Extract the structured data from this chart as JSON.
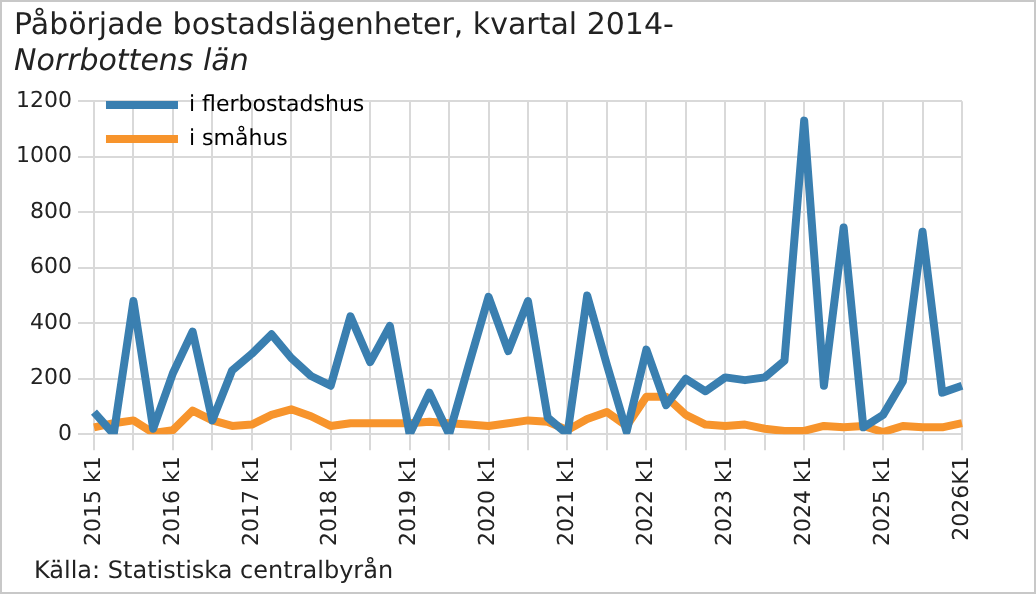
{
  "chart_data": {
    "type": "line",
    "title": "Påbörjade bostadslägenheter, kvartal 2014-",
    "subtitle": "Norrbottens län",
    "categories": [
      "2015 k1",
      null,
      null,
      null,
      "2016 k1",
      null,
      null,
      null,
      "2017 k1",
      null,
      null,
      null,
      "2018 k1",
      null,
      null,
      null,
      "2019 k1",
      null,
      null,
      null,
      "2020 k1",
      null,
      null,
      null,
      "2021 k1",
      null,
      null,
      null,
      "2022 k1",
      null,
      null,
      null,
      "2023 k1",
      null,
      null,
      null,
      "2024 k1",
      null,
      null,
      null,
      "2025 k1",
      null,
      null,
      null,
      "2026K1"
    ],
    "series": [
      {
        "name": "i flerbostadshus",
        "color": "#3a7fb0",
        "values": [
          80,
          0,
          480,
          20,
          220,
          370,
          50,
          230,
          290,
          360,
          275,
          210,
          175,
          425,
          260,
          390,
          0,
          150,
          0,
          250,
          495,
          300,
          480,
          60,
          0,
          500,
          250,
          10,
          305,
          105,
          200,
          155,
          205,
          195,
          205,
          265,
          1130,
          175,
          745,
          25,
          70,
          190,
          730,
          150,
          175
        ]
      },
      {
        "name": "i småhus",
        "color": "#f7942c",
        "values": [
          25,
          40,
          50,
          5,
          15,
          85,
          50,
          30,
          35,
          70,
          90,
          65,
          30,
          40,
          40,
          40,
          40,
          45,
          40,
          35,
          30,
          40,
          50,
          45,
          15,
          55,
          80,
          30,
          135,
          135,
          70,
          35,
          30,
          35,
          20,
          12,
          12,
          30,
          25,
          30,
          8,
          30,
          25,
          25,
          40
        ]
      }
    ],
    "ylim": [
      0,
      1200
    ],
    "yticks": [
      0,
      200,
      400,
      600,
      800,
      1000,
      1200
    ],
    "grid": true,
    "legend": "top left",
    "marker": "none",
    "line_style": "solid",
    "annotations": [
      "Källa: Statistiska centralbyrån"
    ]
  }
}
